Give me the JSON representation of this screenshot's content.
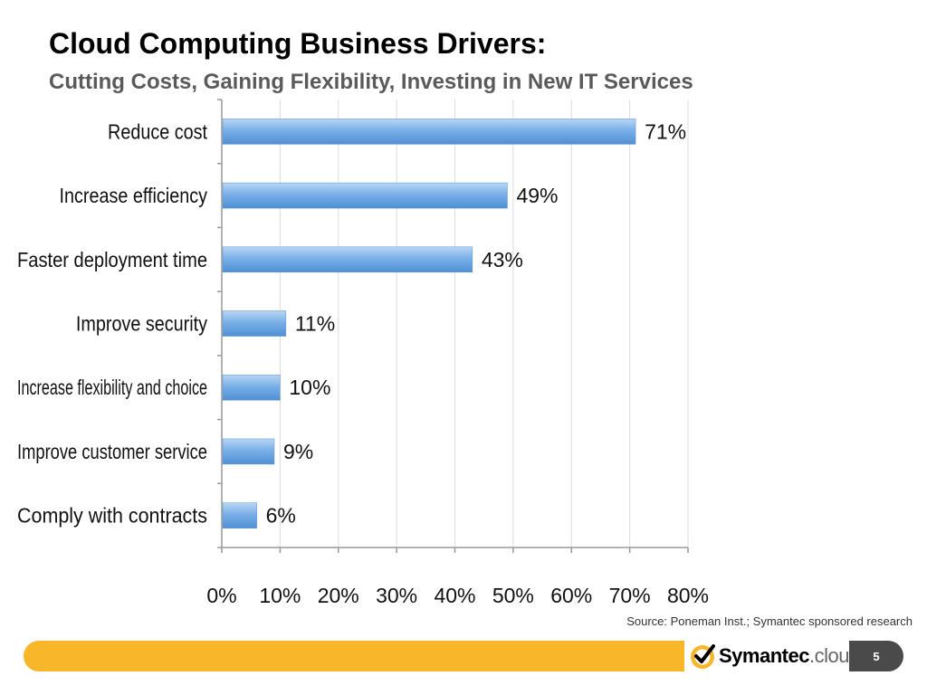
{
  "slide": {
    "title": "Cloud Computing Business Drivers:",
    "subtitle": "Cutting Costs, Gaining Flexibility, Investing in New IT Services",
    "source": "Source: Poneman Inst.; Symantec sponsored research",
    "page_number": "5",
    "brand_color": "#f8b62b",
    "logo": {
      "name": "Symantec",
      "suffix": ".cloud.",
      "mark_icon": "checkmark-seal-icon",
      "mark_color": "#f8b62b"
    }
  },
  "chart_data": {
    "type": "bar",
    "orientation": "horizontal",
    "categories": [
      "Reduce cost",
      "Increase efficiency",
      "Faster deployment time",
      "Improve security",
      "Increase flexibility and choice",
      "Improve customer service",
      "Comply with contracts"
    ],
    "values": [
      71,
      49,
      43,
      11,
      10,
      9,
      6
    ],
    "value_labels": [
      "71%",
      "49%",
      "43%",
      "11%",
      "10%",
      "9%",
      "6%"
    ],
    "xlim": [
      0,
      80
    ],
    "x_ticks": [
      0,
      10,
      20,
      30,
      40,
      50,
      60,
      70,
      80
    ],
    "x_tick_labels": [
      "0%",
      "10%",
      "20%",
      "30%",
      "40%",
      "50%",
      "60%",
      "70%",
      "80%"
    ],
    "grid": true,
    "bar_color": "#7ab0e8",
    "title": "",
    "xlabel": "",
    "ylabel": ""
  }
}
